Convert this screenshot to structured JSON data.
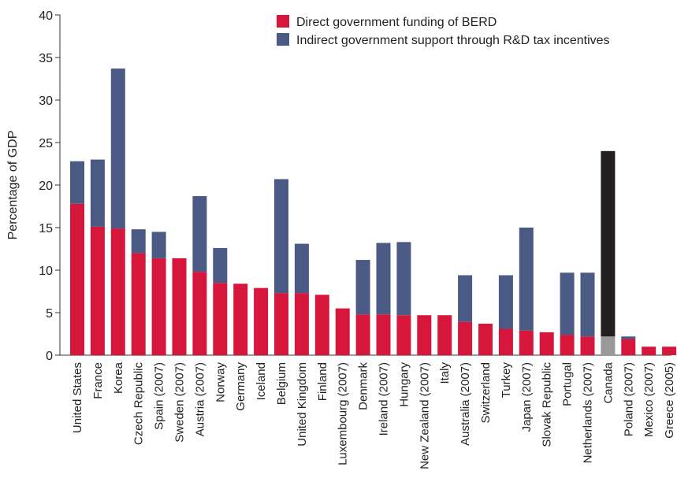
{
  "chart_data": {
    "type": "bar",
    "stacked": true,
    "title": "",
    "xlabel": "",
    "ylabel": "Percentage of GDP",
    "ylim": [
      0,
      40
    ],
    "yticks": [
      0,
      5,
      10,
      15,
      20,
      25,
      30,
      35,
      40
    ],
    "grid": false,
    "legend_position": "top-right",
    "categories": [
      "United States",
      "France",
      "Korea",
      "Czech Republic",
      "Spain (2007)",
      "Sweden (2007)",
      "Austria (2007)",
      "Norway",
      "Germany",
      "Iceland",
      "Belgium",
      "United Kingdom",
      "Finland",
      "Luxembourg (2007)",
      "Denmark",
      "Ireland (2007)",
      "Hungary",
      "New Zealand (2007)",
      "Italy",
      "Australia (2007)",
      "Switzerland",
      "Turkey",
      "Japan (2007)",
      "Slovak Republic",
      "Portugal",
      "Netherlands (2007)",
      "Canada",
      "Poland (2007)",
      "Mexico (2007)",
      "Greece (2005)"
    ],
    "series": [
      {
        "name": "Direct government funding of BERD",
        "color": "#d6163a",
        "values": [
          17.8,
          15.1,
          14.9,
          12.0,
          11.4,
          11.4,
          9.8,
          8.5,
          8.4,
          7.9,
          7.3,
          7.3,
          7.1,
          5.5,
          4.8,
          4.8,
          4.7,
          4.7,
          4.7,
          3.9,
          3.7,
          3.1,
          2.9,
          2.7,
          2.4,
          2.2,
          2.2,
          1.9,
          1.0,
          1.0
        ]
      },
      {
        "name": "Indirect government support through R&D tax incentives",
        "color": "#4b5a85",
        "values": [
          5.0,
          7.9,
          18.8,
          2.8,
          3.1,
          0,
          8.9,
          4.1,
          0,
          0,
          13.4,
          5.8,
          0,
          0,
          6.4,
          8.4,
          8.6,
          0,
          0,
          5.5,
          0,
          6.3,
          12.1,
          0,
          7.3,
          7.5,
          21.8,
          0.3,
          0,
          0
        ]
      }
    ],
    "highlight": {
      "category": "Canada",
      "direct_color": "#999999",
      "indirect_color": "#231f20"
    }
  }
}
